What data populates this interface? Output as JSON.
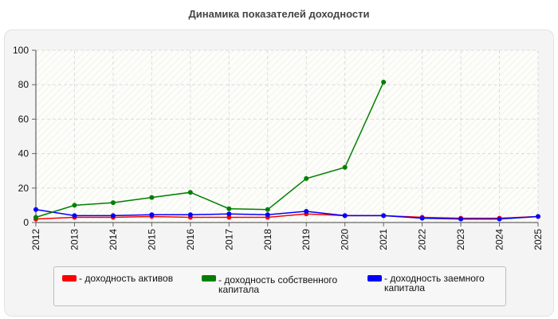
{
  "title": "Динамика показателей доходности",
  "chart_data": {
    "type": "line",
    "x": [
      "2012",
      "2013",
      "2014",
      "2015",
      "2016",
      "2017",
      "2018",
      "2019",
      "2020",
      "2021",
      "2022",
      "2023",
      "2024",
      "2025"
    ],
    "ylim": [
      0,
      100
    ],
    "yticks": [
      0,
      20,
      40,
      60,
      80,
      100
    ],
    "grid": true,
    "legend_position": "bottom",
    "series": [
      {
        "name": "- доходность активов",
        "color": "#ff0000",
        "values": [
          2,
          3,
          3,
          3.5,
          3,
          3,
          3,
          5,
          4,
          4,
          3,
          2.5,
          2.5,
          3.5
        ]
      },
      {
        "name": "- доходность собственного капитала",
        "color": "#008000",
        "values": [
          3,
          10,
          11.5,
          14.5,
          17.5,
          8,
          7.5,
          25.5,
          32,
          81.5,
          null,
          null,
          null,
          null
        ]
      },
      {
        "name": "- доходность заемного капитала",
        "color": "#0000ff",
        "values": [
          7.5,
          4,
          4,
          4.5,
          4.5,
          5,
          4.5,
          6.5,
          4,
          4,
          2.5,
          2,
          2,
          3.5
        ]
      }
    ]
  },
  "legend": {
    "items": [
      {
        "label": "- доходность активов",
        "color": "#ff0000"
      },
      {
        "label": "- доходность собственного капитала",
        "color": "#008000"
      },
      {
        "label": "- доходность заемного капитала",
        "color": "#0000ff"
      }
    ]
  }
}
